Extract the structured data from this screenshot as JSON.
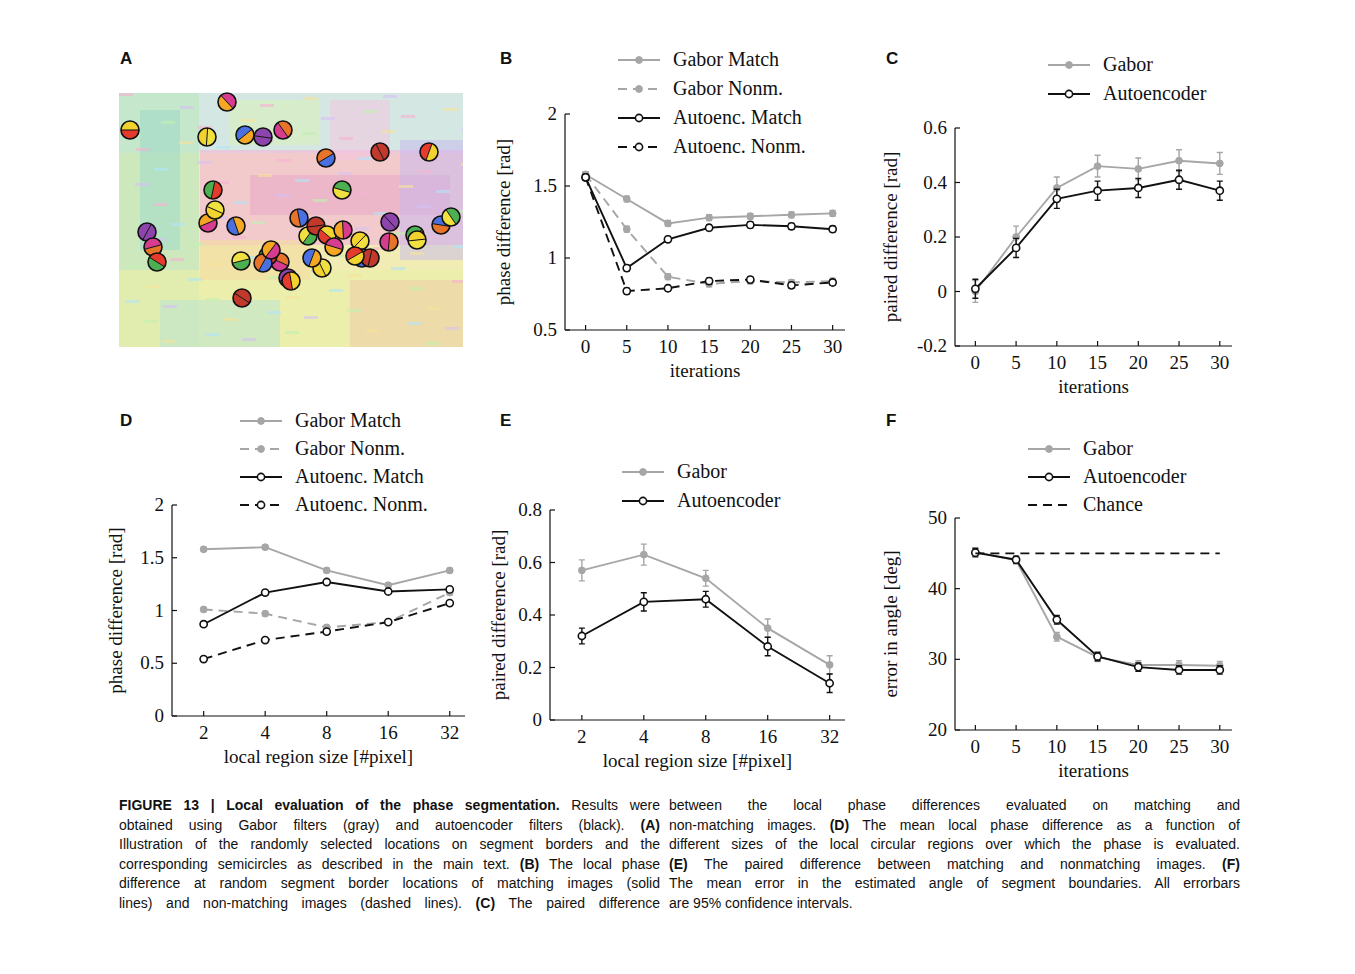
{
  "panel_a": {
    "title": "A"
  },
  "chart_data": [
    {
      "type": "line",
      "title": "B",
      "x": [
        0,
        5,
        10,
        15,
        20,
        25,
        30
      ],
      "xlim": [
        -2.5,
        31.5
      ],
      "xticks": [
        0,
        5,
        10,
        15,
        20,
        25,
        30
      ],
      "ylim": [
        0.5,
        2
      ],
      "yticks": [
        0.5,
        1,
        1.5,
        2
      ],
      "x_label": "iterations",
      "y_label": "phase difference [rad]",
      "legend": "upper right",
      "series": [
        {
          "name": "Gabor Match",
          "color": "#a6a6a6",
          "marker": "dot",
          "line_style": "solid",
          "values": [
            1.58,
            1.41,
            1.24,
            1.28,
            1.29,
            1.3,
            1.31
          ],
          "errors": [
            0.02,
            0.02,
            0.02,
            0.02,
            0.02,
            0.02,
            0.02
          ]
        },
        {
          "name": "Gabor Nonm.",
          "color": "#a6a6a6",
          "marker": "dot",
          "line_style": "dashed",
          "values": [
            1.58,
            1.2,
            0.87,
            0.82,
            0.84,
            0.83,
            0.84
          ],
          "errors": [
            0.02,
            0.02,
            0.02,
            0.02,
            0.02,
            0.02,
            0.02
          ]
        },
        {
          "name": "Autoenc. Match",
          "color": "#111111",
          "marker": "open-circle",
          "line_style": "solid",
          "values": [
            1.56,
            0.93,
            1.13,
            1.21,
            1.23,
            1.22,
            1.2
          ],
          "errors": [
            0.02,
            0.02,
            0.02,
            0.02,
            0.02,
            0.02,
            0.02
          ]
        },
        {
          "name": "Autoenc. Nonm.",
          "color": "#111111",
          "marker": "open-circle",
          "line_style": "dashed",
          "values": [
            1.56,
            0.77,
            0.79,
            0.84,
            0.85,
            0.81,
            0.83
          ],
          "errors": [
            0.02,
            0.02,
            0.02,
            0.02,
            0.02,
            0.02,
            0.02
          ]
        }
      ]
    },
    {
      "type": "line",
      "title": "C",
      "x": [
        0,
        5,
        10,
        15,
        20,
        25,
        30
      ],
      "xlim": [
        -2.5,
        31.5
      ],
      "xticks": [
        0,
        5,
        10,
        15,
        20,
        25,
        30
      ],
      "ylim": [
        -0.2,
        0.6
      ],
      "yticks": [
        -0.2,
        0,
        0.2,
        0.4,
        0.6
      ],
      "x_label": "iterations",
      "y_label": "paired difference [rad]",
      "legend": "upper right",
      "series": [
        {
          "name": "Gabor",
          "color": "#a6a6a6",
          "marker": "dot",
          "line_style": "solid",
          "values": [
            0.0,
            0.2,
            0.38,
            0.46,
            0.45,
            0.48,
            0.47
          ],
          "errors": [
            0.04,
            0.04,
            0.04,
            0.04,
            0.04,
            0.04,
            0.04
          ]
        },
        {
          "name": "Autoencoder",
          "color": "#111111",
          "marker": "open-circle",
          "line_style": "solid",
          "values": [
            0.01,
            0.16,
            0.34,
            0.37,
            0.38,
            0.41,
            0.37
          ],
          "errors": [
            0.035,
            0.035,
            0.035,
            0.035,
            0.035,
            0.035,
            0.035
          ]
        }
      ]
    },
    {
      "type": "line",
      "title": "D",
      "x": [
        2,
        4,
        8,
        16,
        32
      ],
      "log": "x",
      "xlim": [
        1.4,
        38
      ],
      "xticks": [
        2,
        4,
        8,
        16,
        32
      ],
      "ylim": [
        0,
        2
      ],
      "yticks": [
        0,
        0.5,
        1,
        1.5,
        2
      ],
      "x_label": "local region size [#pixel]",
      "y_label": "phase difference [rad]",
      "legend": "upper right",
      "series": [
        {
          "name": "Gabor Match",
          "color": "#a6a6a6",
          "marker": "dot",
          "line_style": "solid",
          "values": [
            1.58,
            1.6,
            1.38,
            1.24,
            1.38
          ],
          "errors": [
            0.02,
            0.02,
            0.02,
            0.02,
            0.02
          ]
        },
        {
          "name": "Gabor Nonm.",
          "color": "#a6a6a6",
          "marker": "dot",
          "line_style": "dashed",
          "values": [
            1.01,
            0.97,
            0.84,
            0.89,
            1.17
          ],
          "errors": [
            0.02,
            0.02,
            0.02,
            0.02,
            0.02
          ]
        },
        {
          "name": "Autoenc. Match",
          "color": "#111111",
          "marker": "open-circle",
          "line_style": "solid",
          "values": [
            0.87,
            1.17,
            1.27,
            1.18,
            1.2
          ],
          "errors": [
            0.02,
            0.02,
            0.02,
            0.02,
            0.02
          ]
        },
        {
          "name": "Autoenc. Nonm.",
          "color": "#111111",
          "marker": "open-circle",
          "line_style": "dashed",
          "values": [
            0.54,
            0.72,
            0.8,
            0.89,
            1.07
          ],
          "errors": [
            0.02,
            0.02,
            0.02,
            0.02,
            0.02
          ]
        }
      ]
    },
    {
      "type": "line",
      "title": "E",
      "x": [
        2,
        4,
        8,
        16,
        32
      ],
      "log": "x",
      "xlim": [
        1.4,
        38
      ],
      "xticks": [
        2,
        4,
        8,
        16,
        32
      ],
      "ylim": [
        0,
        0.8
      ],
      "yticks": [
        0,
        0.2,
        0.4,
        0.6,
        0.8
      ],
      "x_label": "local region size [#pixel]",
      "y_label": "paired difference [rad]",
      "legend": "upper right",
      "series": [
        {
          "name": "Gabor",
          "color": "#a6a6a6",
          "marker": "dot",
          "line_style": "solid",
          "values": [
            0.57,
            0.63,
            0.54,
            0.35,
            0.21
          ],
          "errors": [
            0.04,
            0.04,
            0.03,
            0.035,
            0.035
          ]
        },
        {
          "name": "Autoencoder",
          "color": "#111111",
          "marker": "open-circle",
          "line_style": "solid",
          "values": [
            0.32,
            0.45,
            0.46,
            0.28,
            0.14
          ],
          "errors": [
            0.03,
            0.035,
            0.03,
            0.035,
            0.035
          ]
        }
      ]
    },
    {
      "type": "line",
      "title": "F",
      "x": [
        0,
        5,
        10,
        15,
        20,
        25,
        30
      ],
      "xlim": [
        -2.5,
        31.5
      ],
      "xticks": [
        0,
        5,
        10,
        15,
        20,
        25,
        30
      ],
      "ylim": [
        20,
        50
      ],
      "yticks": [
        20,
        30,
        40,
        50
      ],
      "x_label": "iterations",
      "y_label": "error in angle [deg]",
      "legend": "upper right",
      "series": [
        {
          "name": "Gabor",
          "color": "#a6a6a6",
          "marker": "dot",
          "line_style": "solid",
          "values": [
            45.2,
            44.0,
            33.2,
            30.3,
            29.2,
            29.2,
            29.1
          ],
          "errors": [
            0.6,
            0.5,
            0.6,
            0.6,
            0.6,
            0.6,
            0.6
          ]
        },
        {
          "name": "Autoencoder",
          "color": "#111111",
          "marker": "open-circle",
          "line_style": "solid",
          "values": [
            45.1,
            44.1,
            35.6,
            30.4,
            28.9,
            28.5,
            28.5
          ],
          "errors": [
            0.6,
            0.5,
            0.6,
            0.6,
            0.6,
            0.6,
            0.6
          ]
        },
        {
          "name": "Chance",
          "color": "#111111",
          "marker": "none",
          "line_style": "dashed",
          "values": [
            45,
            45,
            45,
            45,
            45,
            45,
            45
          ]
        }
      ]
    }
  ],
  "caption": {
    "title": "FIGURE 13 | Local evaluation of the phase segmentation.",
    "left_lines": [
      "Results were",
      "obtained using Gabor filters (gray) and autoencoder filters (black). (A)",
      "Illustration of the randomly selected locations on segment borders and the",
      "corresponding semicircles as described in the main text. (B) The local phase",
      "difference at random segment border locations of matching images (solid",
      "lines) and non-matching images (dashed lines). (C) The paired difference"
    ],
    "right_lines": [
      "between the local phase differences evaluated on matching and",
      "non-matching images. (D) The mean local phase difference as a function of",
      "different sizes of the local circular regions over which the phase is evaluated.",
      "(E) The paired difference between matching and nonmatching images. (F)",
      "The mean error in the estimated angle of segment boundaries. All errorbars",
      "are 95% confidence intervals."
    ]
  }
}
